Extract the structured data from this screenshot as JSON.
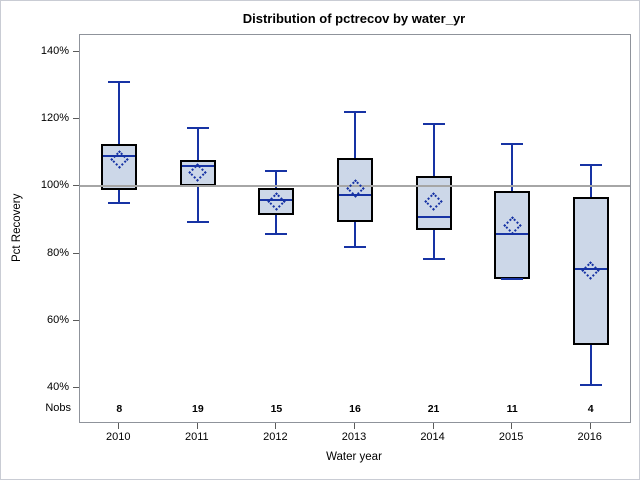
{
  "figure": {
    "title": "Distribution of pctrecov by water_yr"
  },
  "chart_data": {
    "type": "boxplot",
    "title": "Distribution of pctrecov by water_yr",
    "xlabel": "Water year",
    "ylabel": "Pct Recovery",
    "nobs_label": "Nobs",
    "categories": [
      "2010",
      "2011",
      "2012",
      "2013",
      "2014",
      "2015",
      "2016"
    ],
    "nobs": [
      8,
      19,
      15,
      16,
      21,
      11,
      4
    ],
    "yticks": [
      140,
      120,
      100,
      80,
      60,
      40
    ],
    "ytick_suffix": "%",
    "ylim": [
      30,
      145
    ],
    "reference_line": 100,
    "grid": "off",
    "series": [
      {
        "category": "2010",
        "n": 8,
        "whisker_low": 95,
        "q1": 99,
        "median": 109,
        "mean": 108,
        "q3": 112.5,
        "whisker_high": 131
      },
      {
        "category": "2011",
        "n": 19,
        "whisker_low": 89.5,
        "q1": 100,
        "median": 106,
        "mean": 104,
        "q3": 108,
        "whisker_high": 117.5
      },
      {
        "category": "2012",
        "n": 15,
        "whisker_low": 86,
        "q1": 91.5,
        "median": 96,
        "mean": 95.5,
        "q3": 99.5,
        "whisker_high": 104.5
      },
      {
        "category": "2013",
        "n": 16,
        "whisker_low": 82,
        "q1": 89.5,
        "median": 97.5,
        "mean": 99.5,
        "q3": 108.5,
        "whisker_high": 122
      },
      {
        "category": "2014",
        "n": 21,
        "whisker_low": 78.5,
        "q1": 87,
        "median": 91,
        "mean": 95.5,
        "q3": 103,
        "whisker_high": 118.5
      },
      {
        "category": "2015",
        "n": 11,
        "whisker_low": 72.5,
        "q1": 72.5,
        "median": 86,
        "mean": 88.5,
        "q3": 98.5,
        "whisker_high": 112.5
      },
      {
        "category": "2016",
        "n": 4,
        "whisker_low": 41,
        "q1": 53,
        "median": 75.5,
        "mean": 75,
        "q3": 97,
        "whisker_high": 106.5
      }
    ],
    "colors": {
      "box_fill": "#ccd7e8",
      "box_border": "#000000",
      "line_blue": "#1733a4",
      "reference_line": "#a6a6a6",
      "frame": "#8f939b",
      "tick": "#5a5a5a"
    }
  }
}
